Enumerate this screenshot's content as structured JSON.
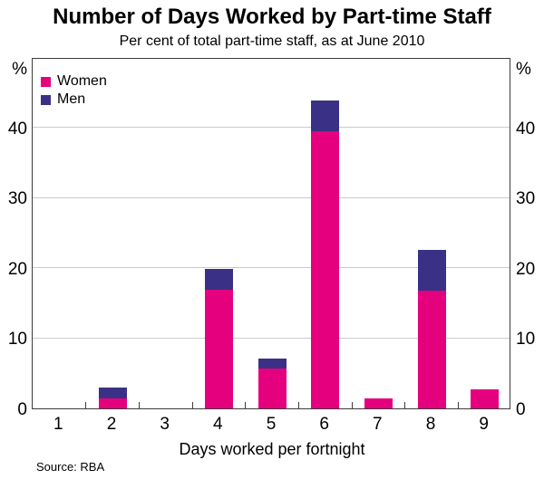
{
  "chart_data": {
    "type": "bar",
    "stacked": true,
    "title": "Number of Days Worked by Part-time Staff",
    "subtitle": "Per cent of total part-time staff, as at June 2010",
    "xlabel": "Days worked per fortnight",
    "unit_label": "%",
    "categories": [
      "1",
      "2",
      "3",
      "4",
      "5",
      "6",
      "7",
      "8",
      "9"
    ],
    "series": [
      {
        "name": "Women",
        "color": "#e5007d",
        "values": [
          0,
          1.4,
          0,
          16.9,
          5.7,
          39.4,
          1.4,
          16.8,
          2.7
        ]
      },
      {
        "name": "Men",
        "color": "#3a3186",
        "values": [
          0,
          1.6,
          0,
          2.9,
          1.4,
          4.4,
          0,
          5.8,
          0
        ]
      }
    ],
    "ylim": [
      0,
      50
    ],
    "yticks": [
      0,
      10,
      20,
      30,
      40
    ],
    "grid": true,
    "legend_position": "top-left",
    "axis_labels_both_sides": true
  },
  "source": "Source: RBA"
}
